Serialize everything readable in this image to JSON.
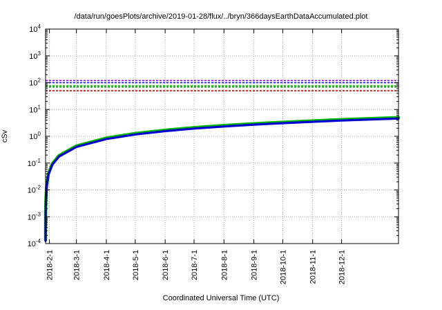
{
  "title": "/data/run/goesPlots/archive/2019-01-28/flux/../bryn/366daysEarthDataAccumulated.plot",
  "xlabel": "Coordinated Universal Time (UTC)",
  "ylabel": "cSv",
  "chart_data": {
    "type": "line",
    "title": "/data/run/goesPlots/archive/2019-01-28/flux/../bryn/366daysEarthDataAccumulated.plot",
    "xlabel": "Coordinated Universal Time (UTC)",
    "ylabel": "cSv",
    "grid": true,
    "x_axis": {
      "total_days": 366,
      "ticks": [
        {
          "label": "2018-2-1",
          "day": 4
        },
        {
          "label": "2018-3-1",
          "day": 32
        },
        {
          "label": "2018-4-1",
          "day": 63
        },
        {
          "label": "2018-5-1",
          "day": 93
        },
        {
          "label": "2018-6-1",
          "day": 124
        },
        {
          "label": "2018-7-1",
          "day": 154
        },
        {
          "label": "2018-8-1",
          "day": 185
        },
        {
          "label": "2018-9-1",
          "day": 216
        },
        {
          "label": "2018-10-1",
          "day": 246
        },
        {
          "label": "2018-11-1",
          "day": 277
        },
        {
          "label": "2018-12-1",
          "day": 307
        }
      ]
    },
    "y_axis": {
      "scale": "log10",
      "min_exponent": -4,
      "max_exponent": 4,
      "tick_exponents": [
        4,
        3,
        2,
        1,
        0,
        -1,
        -2,
        -3,
        -4
      ]
    },
    "threshold_lines": [
      {
        "id": "limit-purple",
        "color": "#9400d3",
        "value": 120
      },
      {
        "id": "limit-blue",
        "color": "#0000ff",
        "value": 100
      },
      {
        "id": "limit-green-upper",
        "color": "#00c000",
        "value": 77
      },
      {
        "id": "limit-green-lower",
        "color": "#009000",
        "value": 69
      },
      {
        "id": "limit-red",
        "color": "#cc0000",
        "value": 50
      }
    ],
    "series": [
      {
        "id": "accumulated-dose-green",
        "color": "#00b800",
        "width": 4.5,
        "x_days": [
          0.01,
          0.03,
          0.1,
          0.3,
          1,
          3,
          7,
          14,
          32,
          63,
          93,
          124,
          154,
          185,
          216,
          246,
          277,
          307,
          338,
          366
        ],
        "values": [
          0.000137,
          0.000411,
          0.00137,
          0.00411,
          0.0137,
          0.0411,
          0.0959,
          0.192,
          0.438,
          0.863,
          1.274,
          1.699,
          2.11,
          2.535,
          2.959,
          3.37,
          3.795,
          4.206,
          4.631,
          5.01
        ]
      },
      {
        "id": "accumulated-dose-blue",
        "color": "#0000d0",
        "width": 3.2,
        "x_days": [
          0.01,
          0.03,
          0.1,
          0.3,
          1,
          3,
          7,
          14,
          32,
          63,
          93,
          124,
          154,
          185,
          216,
          246,
          277,
          307,
          338,
          366
        ],
        "values": [
          0.000126,
          0.000378,
          0.00126,
          0.00378,
          0.0126,
          0.0378,
          0.0882,
          0.176,
          0.403,
          0.794,
          1.172,
          1.562,
          1.94,
          2.331,
          2.722,
          3.1,
          3.49,
          3.868,
          4.259,
          4.61
        ]
      }
    ]
  }
}
